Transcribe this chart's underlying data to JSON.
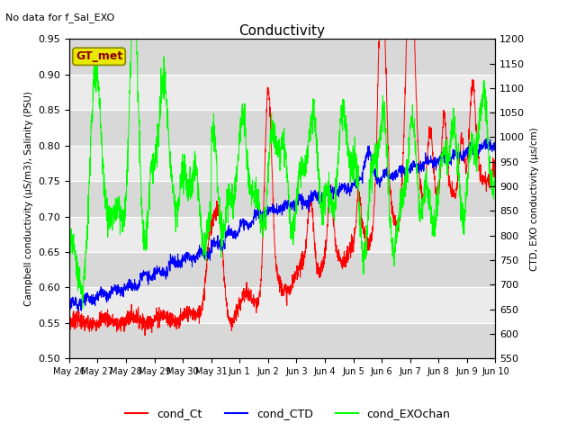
{
  "title": "Conductivity",
  "top_left_text": "No data for f_Sal_EXO",
  "ylabel_left": "Campbell conductivity (μS/m3), Salinity (PSU)",
  "ylabel_right": "CTD, EXO conductivity (μs/cm)",
  "ylim_left": [
    0.5,
    0.95
  ],
  "ylim_right": [
    550,
    1200
  ],
  "yticks_left": [
    0.5,
    0.55,
    0.6,
    0.65,
    0.7,
    0.75,
    0.8,
    0.85,
    0.9,
    0.95
  ],
  "yticks_right": [
    550,
    600,
    650,
    700,
    750,
    800,
    850,
    900,
    950,
    1000,
    1050,
    1100,
    1150,
    1200
  ],
  "xtick_labels": [
    "May 26",
    "May 27",
    "May 28",
    "May 29",
    "May 30",
    "May 31",
    "Jun 1",
    "Jun 2",
    "Jun 3",
    "Jun 4",
    "Jun 5",
    "Jun 6",
    "Jun 7",
    "Jun 8",
    "Jun 9",
    "Jun 10"
  ],
  "background_color": "#ffffff",
  "plot_bg_light": "#ebebeb",
  "plot_bg_dark": "#d8d8d8",
  "annotation_box": "GT_met",
  "gt_met_face": "#e8e800",
  "gt_met_edge": "#888800"
}
